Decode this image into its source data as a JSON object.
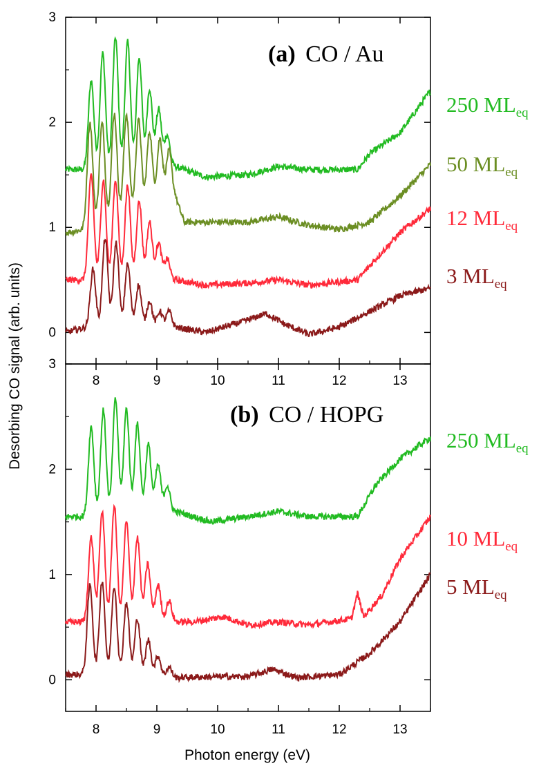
{
  "chart_data": [
    {
      "type": "line",
      "panel_label": "(a)",
      "panel_title": "CO / Au",
      "xlim": [
        7.5,
        13.5
      ],
      "ylim": [
        -0.3,
        3.0
      ],
      "x_ticks": [
        "8",
        "9",
        "10",
        "11",
        "12",
        "13"
      ],
      "y_ticks": [
        "0",
        "1",
        "2",
        "3"
      ],
      "x_tick_values": [
        8,
        9,
        10,
        11,
        12,
        13
      ],
      "y_tick_values": [
        0,
        1,
        2,
        3
      ],
      "series": [
        {
          "name": "250 ML",
          "sub": "eq",
          "color": "#22bb22",
          "baseline": 1.55,
          "peaks": [
            [
              7.92,
              0.85
            ],
            [
              8.11,
              1.1
            ],
            [
              8.32,
              1.25
            ],
            [
              8.52,
              1.2
            ],
            [
              8.71,
              1.05
            ],
            [
              8.88,
              0.75
            ],
            [
              9.03,
              0.55
            ],
            [
              9.17,
              0.3
            ]
          ],
          "points": [
            [
              7.5,
              1.55
            ],
            [
              7.85,
              1.55
            ],
            [
              9.3,
              1.58
            ],
            [
              9.8,
              1.48
            ],
            [
              10.5,
              1.5
            ],
            [
              11.0,
              1.58
            ],
            [
              11.5,
              1.55
            ],
            [
              12.3,
              1.55
            ],
            [
              12.5,
              1.7
            ],
            [
              13.0,
              1.9
            ],
            [
              13.5,
              2.3
            ]
          ]
        },
        {
          "name": "50 ML",
          "sub": "eq",
          "color": "#6b8e23",
          "baseline": 0.95,
          "peaks": [
            [
              7.9,
              1.0
            ],
            [
              8.1,
              0.95
            ],
            [
              8.3,
              1.0
            ],
            [
              8.5,
              0.95
            ],
            [
              8.7,
              0.85
            ],
            [
              8.88,
              0.7
            ],
            [
              9.05,
              0.6
            ],
            [
              9.2,
              0.45
            ]
          ],
          "points": [
            [
              7.5,
              0.95
            ],
            [
              7.83,
              0.98
            ],
            [
              9.3,
              1.3
            ],
            [
              9.45,
              1.05
            ],
            [
              10.0,
              1.05
            ],
            [
              10.5,
              1.05
            ],
            [
              11.0,
              1.1
            ],
            [
              11.5,
              1.02
            ],
            [
              12.0,
              0.98
            ],
            [
              12.5,
              1.05
            ],
            [
              13.0,
              1.3
            ],
            [
              13.5,
              1.6
            ]
          ]
        },
        {
          "name": "12 ML",
          "sub": "eq",
          "color": "#ff2a3a",
          "baseline": 0.5,
          "peaks": [
            [
              7.92,
              1.0
            ],
            [
              8.12,
              0.95
            ],
            [
              8.32,
              0.95
            ],
            [
              8.52,
              0.9
            ],
            [
              8.71,
              0.75
            ],
            [
              8.88,
              0.55
            ],
            [
              9.03,
              0.35
            ],
            [
              9.17,
              0.2
            ]
          ],
          "points": [
            [
              7.5,
              0.5
            ],
            [
              7.85,
              0.5
            ],
            [
              9.3,
              0.5
            ],
            [
              9.8,
              0.45
            ],
            [
              10.5,
              0.47
            ],
            [
              11.0,
              0.5
            ],
            [
              11.5,
              0.45
            ],
            [
              12.3,
              0.5
            ],
            [
              12.6,
              0.7
            ],
            [
              13.0,
              0.95
            ],
            [
              13.5,
              1.18
            ]
          ]
        },
        {
          "name": "3 ML",
          "sub": "eq",
          "color": "#8b1a1a",
          "baseline": 0.0,
          "peaks": [
            [
              7.95,
              0.55
            ],
            [
              8.15,
              0.85
            ],
            [
              8.33,
              0.8
            ],
            [
              8.52,
              0.6
            ],
            [
              8.7,
              0.4
            ],
            [
              8.88,
              0.25
            ],
            [
              9.05,
              0.15
            ],
            [
              9.2,
              0.15
            ]
          ],
          "points": [
            [
              7.5,
              0.0
            ],
            [
              7.85,
              0.05
            ],
            [
              9.3,
              0.05
            ],
            [
              9.8,
              0.0
            ],
            [
              10.4,
              0.1
            ],
            [
              10.8,
              0.18
            ],
            [
              11.1,
              0.08
            ],
            [
              11.5,
              -0.02
            ],
            [
              12.0,
              0.05
            ],
            [
              12.5,
              0.2
            ],
            [
              13.0,
              0.35
            ],
            [
              13.5,
              0.42
            ]
          ]
        }
      ]
    },
    {
      "type": "line",
      "panel_label": "(b)",
      "panel_title": "CO / HOPG",
      "xlim": [
        7.5,
        13.5
      ],
      "ylim": [
        -0.3,
        3.0
      ],
      "x_ticks": [
        "8",
        "9",
        "10",
        "11",
        "12",
        "13"
      ],
      "y_ticks": [
        "0",
        "1",
        "2",
        "3"
      ],
      "x_tick_values": [
        8,
        9,
        10,
        11,
        12,
        13
      ],
      "y_tick_values": [
        0,
        1,
        2,
        3
      ],
      "series": [
        {
          "name": "250 ML",
          "sub": "eq",
          "color": "#22bb22",
          "baseline": 1.55,
          "peaks": [
            [
              7.92,
              0.85
            ],
            [
              8.12,
              1.0
            ],
            [
              8.32,
              1.1
            ],
            [
              8.5,
              1.0
            ],
            [
              8.68,
              0.85
            ],
            [
              8.86,
              0.65
            ],
            [
              9.02,
              0.45
            ],
            [
              9.17,
              0.25
            ]
          ],
          "points": [
            [
              7.5,
              1.55
            ],
            [
              7.85,
              1.55
            ],
            [
              9.3,
              1.6
            ],
            [
              9.9,
              1.5
            ],
            [
              10.5,
              1.55
            ],
            [
              11.0,
              1.6
            ],
            [
              11.5,
              1.55
            ],
            [
              12.3,
              1.55
            ],
            [
              12.6,
              1.85
            ],
            [
              13.0,
              2.1
            ],
            [
              13.5,
              2.3
            ]
          ]
        },
        {
          "name": "10 ML",
          "sub": "eq",
          "color": "#ff2a3a",
          "baseline": 0.55,
          "peaks": [
            [
              7.92,
              0.8
            ],
            [
              8.1,
              1.05
            ],
            [
              8.3,
              1.1
            ],
            [
              8.5,
              0.95
            ],
            [
              8.68,
              0.8
            ],
            [
              8.85,
              0.55
            ],
            [
              9.02,
              0.35
            ],
            [
              9.2,
              0.2
            ]
          ],
          "points": [
            [
              7.5,
              0.55
            ],
            [
              7.85,
              0.55
            ],
            [
              9.3,
              0.55
            ],
            [
              9.6,
              0.55
            ],
            [
              10.1,
              0.6
            ],
            [
              10.5,
              0.52
            ],
            [
              11.0,
              0.55
            ],
            [
              11.5,
              0.52
            ],
            [
              12.2,
              0.58
            ],
            [
              12.3,
              0.82
            ],
            [
              12.4,
              0.6
            ],
            [
              12.7,
              0.8
            ],
            [
              13.0,
              1.15
            ],
            [
              13.5,
              1.55
            ]
          ]
        },
        {
          "name": "5 ML",
          "sub": "eq",
          "color": "#8b1a1a",
          "baseline": 0.05,
          "peaks": [
            [
              7.9,
              0.85
            ],
            [
              8.1,
              0.9
            ],
            [
              8.3,
              0.85
            ],
            [
              8.5,
              0.7
            ],
            [
              8.68,
              0.55
            ],
            [
              8.86,
              0.35
            ],
            [
              9.02,
              0.2
            ],
            [
              9.2,
              0.1
            ]
          ],
          "points": [
            [
              7.5,
              0.05
            ],
            [
              7.8,
              0.05
            ],
            [
              9.3,
              0.02
            ],
            [
              10.0,
              0.03
            ],
            [
              10.5,
              0.03
            ],
            [
              10.9,
              0.1
            ],
            [
              11.3,
              0.02
            ],
            [
              12.0,
              0.05
            ],
            [
              12.5,
              0.25
            ],
            [
              13.0,
              0.55
            ],
            [
              13.5,
              1.0
            ]
          ]
        }
      ]
    }
  ],
  "y_axis_title": "Desorbing CO signal (arb. units)",
  "x_axis_title": "Photon energy (eV)"
}
